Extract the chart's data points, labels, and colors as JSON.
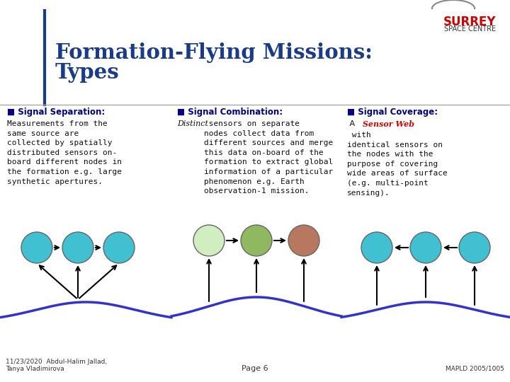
{
  "title_line1": "Formation-Flying Missions:",
  "title_line2": "Types",
  "title_color": "#1a3a8a",
  "bg_color": "#ffffff",
  "footer_left": "11/23/2020  Abdul-Halim Jallad,\nTanya Vladimirova",
  "footer_center": "Page 6",
  "footer_right": "MAPLD 2005/1005",
  "curve_color": "#3333cc",
  "divider_color": "#1a3a8a",
  "sec1_header": "Signal Separation:",
  "sec1_body": "Measurements from the\nsame source are\ncollected by spatially\ndistributed sensors on-\nboard different nodes in\nthe formation e.g. large\nsynthetic apertures.",
  "sec1_nodes": [
    "#40c0d0",
    "#40c0d0",
    "#40c0d0"
  ],
  "sec2_header": "Signal Combination:",
  "sec2_body_italic": "Distinct",
  "sec2_body_rest": " sensors on separate\nnodes collect data from\ndifferent sources and merge\nthis data on-board of the\nformation to extract global\ninformation of a particular\nphenomenon e.g. Earth\nobservation-1 mission.",
  "sec2_nodes": [
    "#d0eec0",
    "#90b860",
    "#b87860"
  ],
  "sec3_header": "Signal Coverage:",
  "sec3_body_a": " A ",
  "sec3_body_italic_red": "Sensor Web",
  "sec3_body_rest": " with\nidentical sensors on\nthe nodes with the\npurpose of covering\nwide areas of surface\n(e.g. multi-point\nsensing).",
  "sec3_nodes": [
    "#40c0d0",
    "#40c0d0",
    "#40c0d0"
  ]
}
